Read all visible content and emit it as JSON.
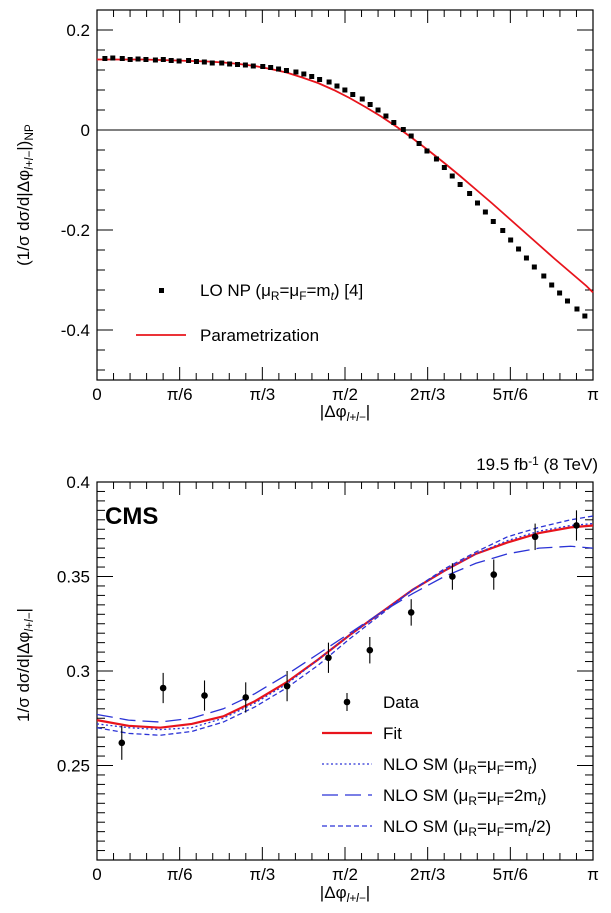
{
  "chart_data": [
    {
      "type": "scatter",
      "title": "",
      "xlabel": "|Δφ_{l+l−}|",
      "ylabel": "(1/σ dσ/d|Δφ_{l+l−}|)_NP",
      "xlim": [
        0,
        3.14159
      ],
      "ylim": [
        -0.5,
        0.24
      ],
      "grid": false,
      "x_ticks": [
        {
          "value": 0,
          "label": "0"
        },
        {
          "value": 0.5236,
          "label": "π/6"
        },
        {
          "value": 1.0472,
          "label": "π/3"
        },
        {
          "value": 1.5708,
          "label": "π/2"
        },
        {
          "value": 2.0944,
          "label": "2π/3"
        },
        {
          "value": 2.618,
          "label": "5π/6"
        },
        {
          "value": 3.1416,
          "label": "π"
        }
      ],
      "y_ticks": [
        {
          "value": 0.2,
          "label": "0.2"
        },
        {
          "value": 0,
          "label": "0"
        },
        {
          "value": -0.2,
          "label": "-0.2"
        },
        {
          "value": -0.4,
          "label": "-0.4"
        }
      ],
      "legend_position": "bottom-left",
      "series": [
        {
          "name": "LO NP (μR=μF=mt) [4]",
          "kind": "points",
          "color": "#000000",
          "x": [
            0.05,
            0.1,
            0.16,
            0.21,
            0.26,
            0.31,
            0.37,
            0.42,
            0.47,
            0.52,
            0.58,
            0.63,
            0.68,
            0.73,
            0.79,
            0.84,
            0.89,
            0.94,
            0.99,
            1.05,
            1.1,
            1.15,
            1.2,
            1.26,
            1.31,
            1.36,
            1.41,
            1.47,
            1.52,
            1.57,
            1.62,
            1.68,
            1.73,
            1.78,
            1.83,
            1.88,
            1.94,
            1.99,
            2.04,
            2.09,
            2.15,
            2.2,
            2.25,
            2.3,
            2.36,
            2.41,
            2.46,
            2.51,
            2.57,
            2.62,
            2.67,
            2.72,
            2.77,
            2.83,
            2.88,
            2.93,
            2.98,
            3.04,
            3.09
          ],
          "y": [
            0.143,
            0.144,
            0.143,
            0.141,
            0.142,
            0.141,
            0.14,
            0.141,
            0.139,
            0.138,
            0.139,
            0.137,
            0.136,
            0.134,
            0.134,
            0.132,
            0.131,
            0.13,
            0.128,
            0.127,
            0.125,
            0.122,
            0.119,
            0.116,
            0.112,
            0.107,
            0.101,
            0.096,
            0.088,
            0.08,
            0.071,
            0.062,
            0.051,
            0.04,
            0.028,
            0.015,
            0.001,
            -0.012,
            -0.027,
            -0.042,
            -0.058,
            -0.075,
            -0.092,
            -0.109,
            -0.127,
            -0.146,
            -0.164,
            -0.183,
            -0.201,
            -0.22,
            -0.238,
            -0.256,
            -0.274,
            -0.292,
            -0.31,
            -0.326,
            -0.342,
            -0.358,
            -0.372
          ]
        },
        {
          "name": "Parametrization",
          "kind": "line",
          "color": "#e8141c",
          "x": [
            0,
            0.1,
            0.2,
            0.3,
            0.4,
            0.5,
            0.6,
            0.7,
            0.8,
            0.9,
            1.0,
            1.1,
            1.2,
            1.3,
            1.4,
            1.5,
            1.6,
            1.7,
            1.8,
            1.9,
            2.0,
            2.1,
            2.2,
            2.3,
            2.4,
            2.5,
            2.6,
            2.7,
            2.8,
            2.9,
            3.0,
            3.1,
            3.1416
          ],
          "y": [
            0.141,
            0.141,
            0.141,
            0.141,
            0.14,
            0.139,
            0.138,
            0.137,
            0.135,
            0.132,
            0.128,
            0.122,
            0.115,
            0.105,
            0.094,
            0.08,
            0.064,
            0.046,
            0.027,
            0.006,
            -0.017,
            -0.041,
            -0.066,
            -0.092,
            -0.119,
            -0.146,
            -0.174,
            -0.202,
            -0.23,
            -0.258,
            -0.285,
            -0.312,
            -0.325
          ]
        }
      ]
    },
    {
      "type": "scatter",
      "title": "",
      "xlabel": "|Δφ_{l+l−}|",
      "ylabel": "1/σ dσ/d|Δφ_{l+l−}|",
      "xlim": [
        0,
        3.14159
      ],
      "ylim": [
        0.2,
        0.4
      ],
      "grid": false,
      "x_ticks": [
        {
          "value": 0,
          "label": "0"
        },
        {
          "value": 0.5236,
          "label": "π/6"
        },
        {
          "value": 1.0472,
          "label": "π/3"
        },
        {
          "value": 1.5708,
          "label": "π/2"
        },
        {
          "value": 2.0944,
          "label": "2π/3"
        },
        {
          "value": 2.618,
          "label": "5π/6"
        },
        {
          "value": 3.1416,
          "label": "π"
        }
      ],
      "y_ticks": [
        {
          "value": 0.4,
          "label": "0.4"
        },
        {
          "value": 0.35,
          "label": "0.35"
        },
        {
          "value": 0.3,
          "label": "0.3"
        },
        {
          "value": 0.25,
          "label": "0.25"
        }
      ],
      "experiment": "CMS",
      "luminosity": "19.5 fb",
      "luminosity_exp": "-1",
      "energy": "(8 TeV)",
      "legend_position": "bottom-right",
      "data": {
        "name": "Data",
        "x": [
          0.157,
          0.419,
          0.681,
          0.942,
          1.204,
          1.466,
          1.728,
          1.99,
          2.251,
          2.513,
          2.775,
          3.037
        ],
        "y": [
          0.262,
          0.291,
          0.287,
          0.286,
          0.292,
          0.307,
          0.311,
          0.331,
          0.35,
          0.351,
          0.371,
          0.377
        ],
        "err": [
          0.009,
          0.008,
          0.008,
          0.008,
          0.008,
          0.008,
          0.007,
          0.007,
          0.007,
          0.008,
          0.007,
          0.008
        ]
      },
      "curves": [
        {
          "name": "Fit",
          "color": "#e8141c",
          "dash": "solid",
          "width": 2.2,
          "x": [
            0,
            0.2,
            0.4,
            0.6,
            0.8,
            1.0,
            1.2,
            1.4,
            1.6,
            1.8,
            2.0,
            2.2,
            2.4,
            2.6,
            2.8,
            3.0,
            3.1416
          ],
          "y": [
            0.274,
            0.271,
            0.27,
            0.272,
            0.276,
            0.284,
            0.294,
            0.306,
            0.319,
            0.331,
            0.343,
            0.353,
            0.362,
            0.368,
            0.373,
            0.376,
            0.377
          ]
        },
        {
          "name": "NLO SM (μR=μF=mt)",
          "color": "#2b33d6",
          "dash": "2,2.5",
          "width": 1.3,
          "x": [
            0,
            0.2,
            0.4,
            0.6,
            0.8,
            1.0,
            1.2,
            1.4,
            1.6,
            1.8,
            2.0,
            2.2,
            2.4,
            2.6,
            2.8,
            3.0,
            3.1416
          ],
          "y": [
            0.272,
            0.27,
            0.269,
            0.27,
            0.275,
            0.283,
            0.293,
            0.306,
            0.319,
            0.331,
            0.343,
            0.353,
            0.362,
            0.369,
            0.374,
            0.377,
            0.378
          ]
        },
        {
          "name": "NLO SM (μR=μF=2mt)",
          "color": "#2b33d6",
          "dash": "16,7",
          "width": 1.3,
          "x": [
            0,
            0.2,
            0.4,
            0.6,
            0.8,
            1.0,
            1.2,
            1.4,
            1.6,
            1.8,
            2.0,
            2.2,
            2.4,
            2.6,
            2.8,
            3.0,
            3.1416
          ],
          "y": [
            0.277,
            0.274,
            0.273,
            0.275,
            0.28,
            0.288,
            0.298,
            0.309,
            0.32,
            0.331,
            0.341,
            0.35,
            0.357,
            0.362,
            0.365,
            0.366,
            0.365
          ]
        },
        {
          "name": "NLO SM (μR=μF=mt/2)",
          "color": "#2b33d6",
          "dash": "5,3",
          "width": 1.3,
          "x": [
            0,
            0.2,
            0.4,
            0.6,
            0.8,
            1.0,
            1.2,
            1.4,
            1.6,
            1.8,
            2.0,
            2.2,
            2.4,
            2.6,
            2.8,
            3.0,
            3.1416
          ],
          "y": [
            0.27,
            0.267,
            0.266,
            0.268,
            0.273,
            0.281,
            0.291,
            0.303,
            0.317,
            0.33,
            0.343,
            0.354,
            0.363,
            0.371,
            0.376,
            0.38,
            0.382
          ]
        }
      ]
    }
  ]
}
